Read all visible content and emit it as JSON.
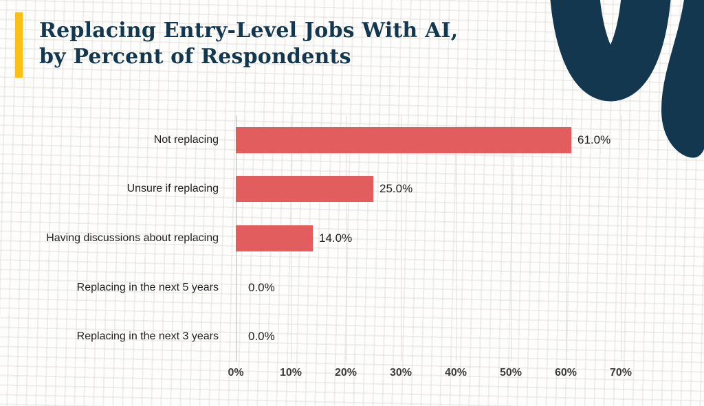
{
  "page": {
    "background_color": "#fdfdfc",
    "accent_bar_color": "#fcbf16",
    "navy_color": "#12374e"
  },
  "header": {
    "title_line1": "Replacing Entry-Level Jobs With AI,",
    "title_line2": "by Percent of Respondents"
  },
  "icons": {
    "decorative_swirl": "navy s-curve brand swirl, top-right corner"
  },
  "chart_data": {
    "type": "bar",
    "orientation": "horizontal",
    "title": "Replacing Entry-Level Jobs With AI, by Percent of Respondents",
    "categories": [
      "Not replacing",
      "Unsure if replacing",
      "Having discussions about replacing",
      "Replacing in the next 5 years",
      "Replacing in the next 3 years"
    ],
    "values": [
      61.0,
      25.0,
      14.0,
      0.0,
      0.0
    ],
    "value_labels": [
      "61.0%",
      "25.0%",
      "14.0%",
      "0.0%",
      "0.0%"
    ],
    "x_tick_values": [
      0,
      10,
      20,
      30,
      40,
      50,
      60,
      70
    ],
    "x_tick_labels": [
      "0%",
      "10%",
      "20%",
      "30%",
      "40%",
      "50%",
      "60%",
      "70%"
    ],
    "xlim": [
      0,
      80
    ],
    "xlabel": "",
    "ylabel": "",
    "grid": "vertical-gridlines-on",
    "legend": "none",
    "bar_color": "#e15d5e",
    "gridline_color": "#dedcda",
    "axis_line_color": "#b3b1ae"
  }
}
